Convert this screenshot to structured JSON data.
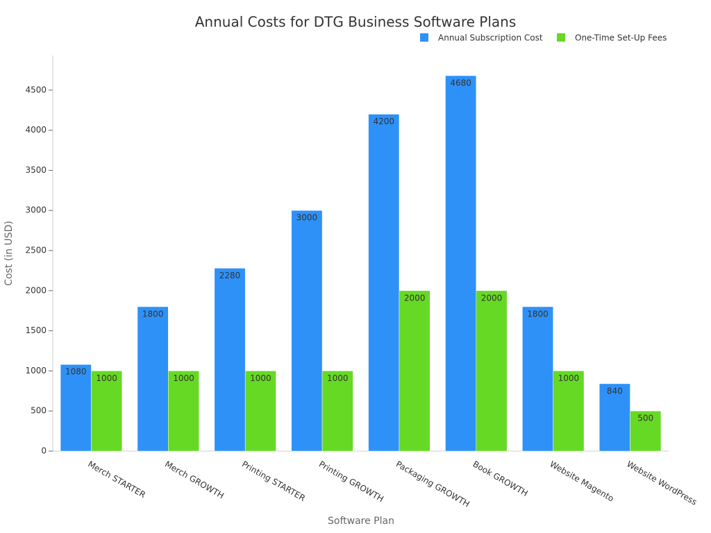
{
  "chart_data": {
    "type": "bar",
    "title": "Annual Costs for DTG Business Software Plans",
    "x_label": "Software Plan",
    "y_label": "Cost (in USD)",
    "categories": [
      "Merch STARTER",
      "Merch GROWTH",
      "Printing STARTER",
      "Printing GROWTH",
      "Packaging GROWTH",
      "Book GROWTH",
      "Website Magento",
      "Website WordPress"
    ],
    "series": [
      {
        "name": "Annual Subscription Cost",
        "color": "#2e91f7",
        "values": [
          1080,
          1800,
          2280,
          3000,
          4200,
          4680,
          1800,
          840
        ]
      },
      {
        "name": "One-Time Set-Up Fees",
        "color": "#66d924",
        "values": [
          1000,
          1000,
          1000,
          1000,
          2000,
          2000,
          1000,
          500
        ]
      }
    ],
    "ylim": [
      0,
      4914
    ],
    "yticks": [
      0,
      500,
      1000,
      1500,
      2000,
      2500,
      3000,
      3500,
      4000,
      4500
    ],
    "grid": false,
    "legend": "top-right"
  }
}
